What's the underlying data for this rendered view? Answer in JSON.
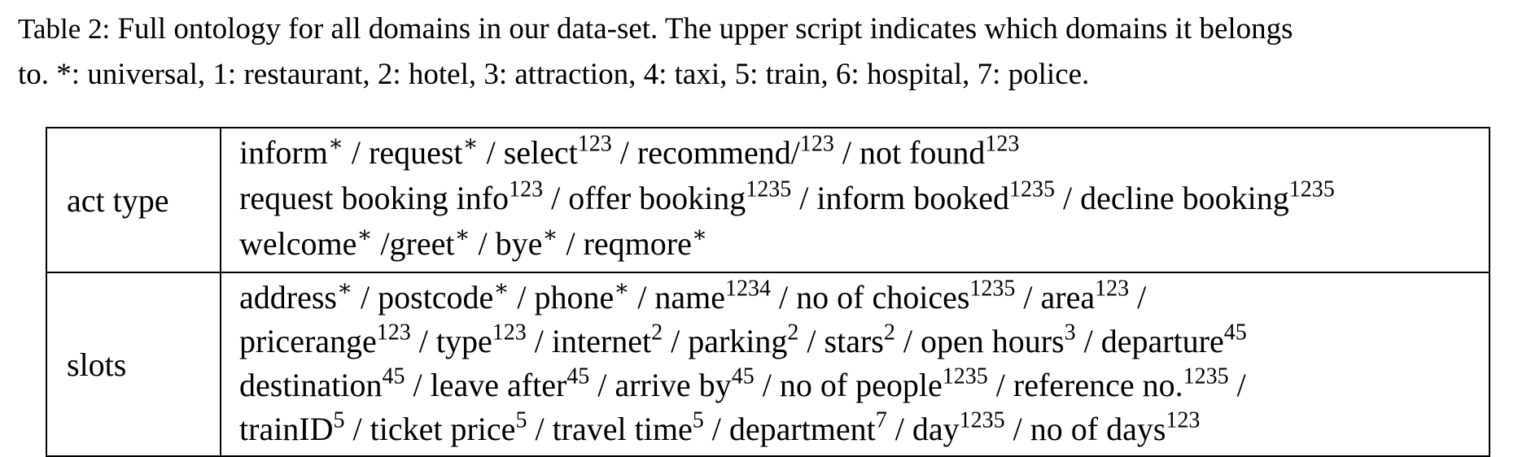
{
  "caption": {
    "label": "Table 2:",
    "lines": [
      " Full ontology for all domains in our data-set. The upper script indicates which domains it belongs",
      "to. *: universal, 1: restaurant, 2: hotel, 3: attraction, 4: taxi, 5: train, 6: hospital, 7: police."
    ]
  },
  "table": {
    "rows": [
      {
        "label": "act type",
        "lines": [
          [
            {
              "t": "inform",
              "s": "∗",
              "sep": " / "
            },
            {
              "t": "request",
              "s": "∗",
              "sep": " / "
            },
            {
              "t": "select",
              "s": "123",
              "sep": " / "
            },
            {
              "t": "recommend/",
              "s": "123",
              "sep": " / "
            },
            {
              "t": "not found",
              "s": "123",
              "sep": ""
            }
          ],
          [
            {
              "t": "request booking info",
              "s": "123",
              "sep": " / "
            },
            {
              "t": "offer booking",
              "s": "1235",
              "sep": " / "
            },
            {
              "t": "inform booked",
              "s": "1235",
              "sep": " / "
            },
            {
              "t": "decline booking",
              "s": "1235",
              "sep": ""
            }
          ],
          [
            {
              "t": "welcome",
              "s": "∗",
              "sep": " /"
            },
            {
              "t": "greet",
              "s": "∗",
              "sep": " / "
            },
            {
              "t": "bye",
              "s": "∗",
              "sep": " / "
            },
            {
              "t": "reqmore",
              "s": "∗",
              "sep": ""
            }
          ]
        ]
      },
      {
        "label": "slots",
        "lines": [
          [
            {
              "t": "address",
              "s": "∗",
              "sep": " / "
            },
            {
              "t": "postcode",
              "s": "∗",
              "sep": " / "
            },
            {
              "t": "phone",
              "s": "∗",
              "sep": " / "
            },
            {
              "t": "name",
              "s": "1234",
              "sep": " / "
            },
            {
              "t": "no of choices",
              "s": "1235",
              "sep": " / "
            },
            {
              "t": "area",
              "s": "123",
              "sep": " /"
            }
          ],
          [
            {
              "t": "pricerange",
              "s": "123",
              "sep": " / "
            },
            {
              "t": "type",
              "s": "123",
              "sep": " / "
            },
            {
              "t": "internet",
              "s": "2",
              "sep": " / "
            },
            {
              "t": "parking",
              "s": "2",
              "sep": " / "
            },
            {
              "t": "stars",
              "s": "2",
              "sep": " / "
            },
            {
              "t": "open hours",
              "s": "3",
              "sep": " / "
            },
            {
              "t": "departure",
              "s": "45",
              "sep": ""
            }
          ],
          [
            {
              "t": "destination",
              "s": "45",
              "sep": " / "
            },
            {
              "t": "leave after",
              "s": "45",
              "sep": " / "
            },
            {
              "t": "arrive by",
              "s": "45",
              "sep": " / "
            },
            {
              "t": "no of people",
              "s": "1235",
              "sep": " / "
            },
            {
              "t": "reference no.",
              "s": "1235",
              "sep": " /"
            }
          ],
          [
            {
              "t": "trainID",
              "s": "5",
              "sep": " / "
            },
            {
              "t": "ticket price",
              "s": "5",
              "sep": " / "
            },
            {
              "t": "travel time",
              "s": "5",
              "sep": " / "
            },
            {
              "t": "department",
              "s": "7",
              "sep": " / "
            },
            {
              "t": "day",
              "s": "1235",
              "sep": " / "
            },
            {
              "t": "no of days",
              "s": "123",
              "sep": ""
            }
          ]
        ]
      }
    ]
  }
}
